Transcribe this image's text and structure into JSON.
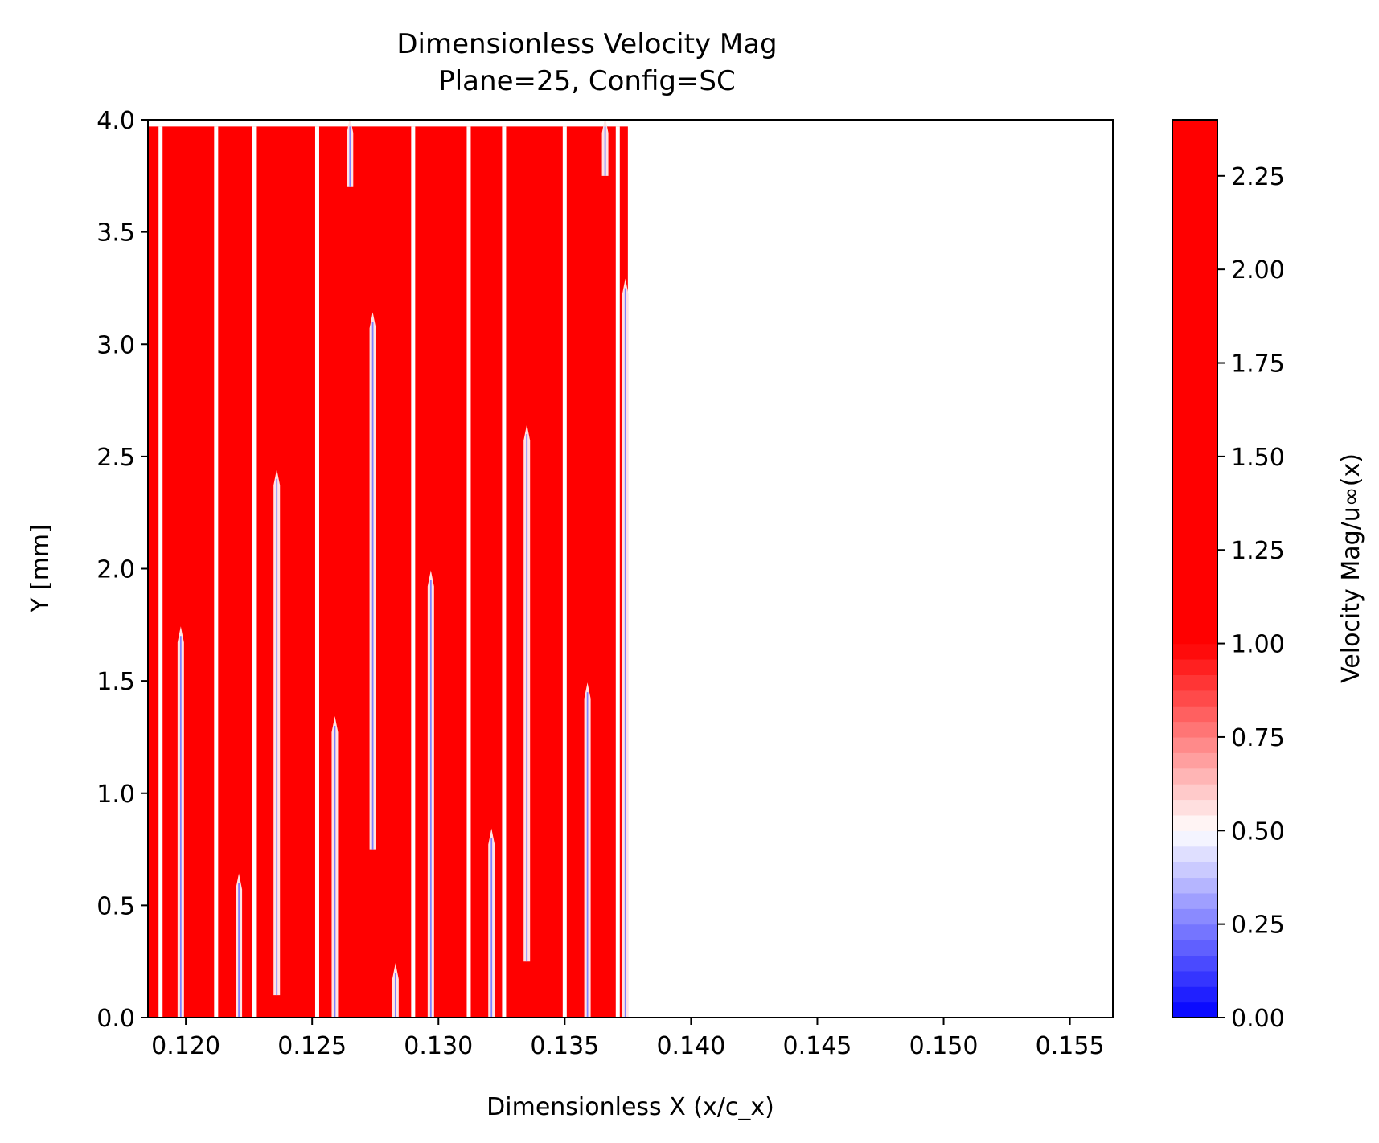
{
  "chart_data": {
    "type": "heatmap",
    "title": "Dimensionless Velocity Mag",
    "subtitle": "Plane=25, Config=SC",
    "xlabel": "Dimensionless X (x/c_x)",
    "ylabel": "Y [mm]",
    "xlim": [
      0.1185,
      0.1567
    ],
    "ylim": [
      0.0,
      4.0
    ],
    "x_ticks": [
      "0.120",
      "0.125",
      "0.130",
      "0.135",
      "0.140",
      "0.145",
      "0.150",
      "0.155"
    ],
    "x_tick_values": [
      0.12,
      0.125,
      0.13,
      0.135,
      0.14,
      0.145,
      0.15,
      0.155
    ],
    "y_ticks": [
      "0.0",
      "0.5",
      "1.0",
      "1.5",
      "2.0",
      "2.5",
      "3.0",
      "3.5",
      "4.0"
    ],
    "y_tick_values": [
      0.0,
      0.5,
      1.0,
      1.5,
      2.0,
      2.5,
      3.0,
      3.5,
      4.0
    ],
    "data_region": {
      "x_start": 0.1185,
      "x_end": 0.1375,
      "y_top": 3.97,
      "fill_color": "#ff0000",
      "white_gaps_x": [
        0.119,
        0.1212,
        0.1227,
        0.1252,
        0.129,
        0.1312,
        0.1326,
        0.135,
        0.1371
      ],
      "low_velocity_streaks": [
        {
          "x": 0.1198,
          "y_range": [
            0.0,
            1.7
          ]
        },
        {
          "x": 0.1221,
          "y_range": [
            0.0,
            0.6
          ]
        },
        {
          "x": 0.1236,
          "y_range": [
            0.1,
            2.4
          ]
        },
        {
          "x": 0.1259,
          "y_range": [
            0.0,
            1.3
          ]
        },
        {
          "x": 0.1265,
          "y_range": [
            3.7,
            3.97
          ]
        },
        {
          "x": 0.1274,
          "y_range": [
            0.75,
            3.1
          ]
        },
        {
          "x": 0.1283,
          "y_range": [
            0.0,
            0.2
          ]
        },
        {
          "x": 0.1297,
          "y_range": [
            0.0,
            1.95
          ]
        },
        {
          "x": 0.1321,
          "y_range": [
            0.0,
            0.8
          ]
        },
        {
          "x": 0.1335,
          "y_range": [
            0.25,
            2.6
          ]
        },
        {
          "x": 0.1359,
          "y_range": [
            0.0,
            1.45
          ]
        },
        {
          "x": 0.1366,
          "y_range": [
            3.75,
            3.97
          ]
        },
        {
          "x": 0.1374,
          "y_range": [
            0.0,
            3.25
          ]
        }
      ]
    },
    "colorbar": {
      "label": "Velocity Mag/u∞(x)",
      "range": [
        0.0,
        2.4
      ],
      "ticks": [
        "0.00",
        "0.25",
        "0.50",
        "0.75",
        "1.00",
        "1.25",
        "1.50",
        "1.75",
        "2.00",
        "2.25"
      ],
      "tick_values": [
        0.0,
        0.25,
        0.5,
        0.75,
        1.0,
        1.25,
        1.5,
        1.75,
        2.0,
        2.25
      ],
      "colormap": "bwr",
      "clip_above": 1.0,
      "bands": 24
    },
    "grid": false
  }
}
